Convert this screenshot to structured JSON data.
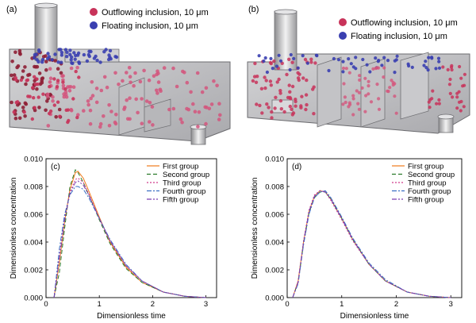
{
  "figure": {
    "panel_a": {
      "label": "(a)",
      "legend": [
        {
          "name": "Outflowing inclusion, 10 μm",
          "color": "#c8335a"
        },
        {
          "name": "Floating inclusion, 10 μm",
          "color": "#3a3fb0"
        }
      ]
    },
    "panel_b": {
      "label": "(b)",
      "legend": [
        {
          "name": "Outflowing inclusion, 10 μm",
          "color": "#c8335a"
        },
        {
          "name": "Floating inclusion, 10 μm",
          "color": "#3a3fb0"
        }
      ]
    }
  },
  "chart_data": [
    {
      "type": "line",
      "panel": "(c)",
      "xlabel": "Dimensionless time",
      "ylabel": "Dimensionless concentration",
      "xlim": [
        0,
        3.2
      ],
      "ylim": [
        0,
        0.01
      ],
      "xticks": [
        "0",
        "1",
        "2",
        "3"
      ],
      "yticks": [
        "0.000",
        "0.002",
        "0.004",
        "0.006",
        "0.008",
        "0.010"
      ],
      "legend_position": "top-right",
      "series": [
        {
          "name": "First group",
          "color": "#f07a1a",
          "dash": "",
          "peak_t": 0.57,
          "peak_c": 0.0091,
          "t": [
            0.15,
            0.25,
            0.35,
            0.45,
            0.55,
            0.6,
            0.7,
            0.8,
            1.0,
            1.2,
            1.5,
            1.8,
            2.2,
            2.6,
            3.0
          ],
          "c": [
            0.0,
            0.0025,
            0.0055,
            0.0078,
            0.009,
            0.0091,
            0.0086,
            0.0077,
            0.0058,
            0.004,
            0.0022,
            0.0011,
            0.0004,
            0.0001,
            0.0
          ]
        },
        {
          "name": "Second group",
          "color": "#2a7a2a",
          "dash": "5,3",
          "peak_t": 0.55,
          "peak_c": 0.0092,
          "t": [
            0.15,
            0.25,
            0.35,
            0.45,
            0.55,
            0.6,
            0.7,
            0.8,
            1.0,
            1.2,
            1.5,
            1.8,
            2.2,
            2.6,
            3.0
          ],
          "c": [
            0.0,
            0.0018,
            0.005,
            0.008,
            0.0092,
            0.009,
            0.0083,
            0.0074,
            0.0056,
            0.0039,
            0.0021,
            0.0011,
            0.0004,
            0.0001,
            0.0
          ]
        },
        {
          "name": "Third group",
          "color": "#d03a8a",
          "dash": "2,2",
          "peak_t": 0.6,
          "peak_c": 0.0086,
          "t": [
            0.15,
            0.25,
            0.35,
            0.45,
            0.55,
            0.6,
            0.7,
            0.8,
            1.0,
            1.2,
            1.5,
            1.8,
            2.2,
            2.6,
            3.0
          ],
          "c": [
            0.0,
            0.003,
            0.0058,
            0.0076,
            0.0085,
            0.0086,
            0.0083,
            0.0075,
            0.0057,
            0.0041,
            0.0023,
            0.0012,
            0.0004,
            0.0001,
            0.0
          ]
        },
        {
          "name": "Fourth group",
          "color": "#3b6fc4",
          "dash": "6,2,2,2",
          "peak_t": 0.55,
          "peak_c": 0.008,
          "t": [
            0.15,
            0.25,
            0.35,
            0.45,
            0.55,
            0.6,
            0.7,
            0.8,
            1.0,
            1.2,
            1.5,
            1.8,
            2.2,
            2.6,
            3.0
          ],
          "c": [
            0.0,
            0.0035,
            0.006,
            0.0074,
            0.008,
            0.008,
            0.0078,
            0.0072,
            0.0057,
            0.0042,
            0.0024,
            0.0012,
            0.0004,
            0.0001,
            0.0
          ]
        },
        {
          "name": "Fifth group",
          "color": "#7a3fb0",
          "dash": "6,2,2,2,2,2",
          "peak_t": 0.6,
          "peak_c": 0.0084,
          "t": [
            0.15,
            0.25,
            0.35,
            0.45,
            0.55,
            0.6,
            0.7,
            0.8,
            1.0,
            1.2,
            1.5,
            1.8,
            2.2,
            2.6,
            3.0
          ],
          "c": [
            0.0,
            0.0028,
            0.0056,
            0.0075,
            0.0083,
            0.0084,
            0.0081,
            0.0074,
            0.0057,
            0.0041,
            0.0023,
            0.0012,
            0.0004,
            0.0001,
            0.0
          ]
        }
      ]
    },
    {
      "type": "line",
      "panel": "(d)",
      "xlabel": "Dimensionless time",
      "ylabel": "Dimensionless concentration",
      "xlim": [
        0,
        3.2
      ],
      "ylim": [
        0,
        0.01
      ],
      "xticks": [
        "0",
        "1",
        "2",
        "3"
      ],
      "yticks": [
        "0.000",
        "0.002",
        "0.004",
        "0.006",
        "0.008",
        "0.010"
      ],
      "legend_position": "top-right",
      "series": [
        {
          "name": "First group",
          "color": "#f07a1a",
          "dash": "",
          "t": [
            0.1,
            0.2,
            0.3,
            0.4,
            0.5,
            0.6,
            0.7,
            0.8,
            1.0,
            1.2,
            1.5,
            1.8,
            2.2,
            2.6,
            3.0
          ],
          "c": [
            0.0,
            0.0012,
            0.004,
            0.0062,
            0.0073,
            0.0077,
            0.0076,
            0.0071,
            0.0057,
            0.0042,
            0.0024,
            0.0012,
            0.0004,
            0.0001,
            0.0
          ]
        },
        {
          "name": "Second group",
          "color": "#2a7a2a",
          "dash": "5,3",
          "t": [
            0.1,
            0.2,
            0.3,
            0.4,
            0.5,
            0.6,
            0.7,
            0.8,
            1.0,
            1.2,
            1.5,
            1.8,
            2.2,
            2.6,
            3.0
          ],
          "c": [
            0.0,
            0.0011,
            0.0039,
            0.0061,
            0.0072,
            0.0076,
            0.0076,
            0.0071,
            0.0057,
            0.0042,
            0.0024,
            0.0012,
            0.0004,
            0.0001,
            0.0
          ]
        },
        {
          "name": "Third group",
          "color": "#d03a8a",
          "dash": "2,2",
          "t": [
            0.1,
            0.2,
            0.3,
            0.4,
            0.5,
            0.6,
            0.7,
            0.8,
            1.0,
            1.2,
            1.5,
            1.8,
            2.2,
            2.6,
            3.0
          ],
          "c": [
            0.0,
            0.0012,
            0.0041,
            0.0063,
            0.0074,
            0.0077,
            0.0076,
            0.007,
            0.0056,
            0.0041,
            0.0024,
            0.0012,
            0.0004,
            0.0001,
            0.0
          ]
        },
        {
          "name": "Fourth group",
          "color": "#3b6fc4",
          "dash": "6,2,2,2",
          "t": [
            0.1,
            0.2,
            0.3,
            0.4,
            0.5,
            0.6,
            0.7,
            0.8,
            1.0,
            1.2,
            1.5,
            1.8,
            2.2,
            2.6,
            3.0
          ],
          "c": [
            0.0,
            0.001,
            0.0038,
            0.006,
            0.0072,
            0.0076,
            0.0077,
            0.0072,
            0.0058,
            0.0043,
            0.0025,
            0.0013,
            0.0004,
            0.0001,
            0.0
          ]
        },
        {
          "name": "Fifth group",
          "color": "#7a3fb0",
          "dash": "6,2,2,2,2,2",
          "t": [
            0.1,
            0.2,
            0.3,
            0.4,
            0.5,
            0.6,
            0.7,
            0.8,
            1.0,
            1.2,
            1.5,
            1.8,
            2.2,
            2.6,
            3.0
          ],
          "c": [
            0.0,
            0.0011,
            0.004,
            0.0062,
            0.0073,
            0.0077,
            0.0076,
            0.0071,
            0.0057,
            0.0042,
            0.0024,
            0.0012,
            0.0004,
            0.0001,
            0.0
          ]
        }
      ]
    }
  ]
}
